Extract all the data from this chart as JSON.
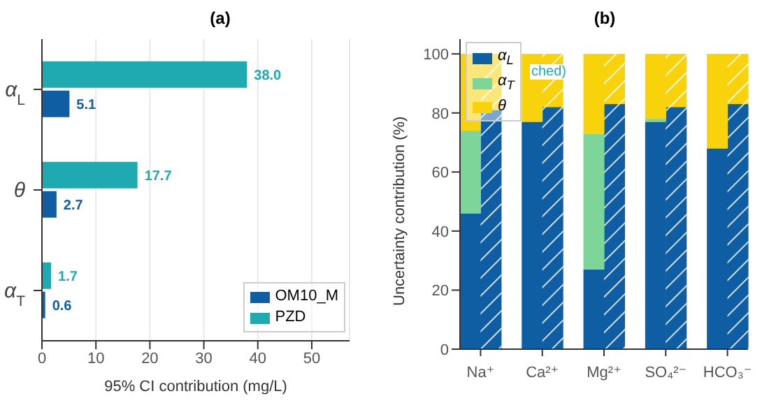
{
  "chart_data": [
    {
      "type": "bar",
      "title": "(a)",
      "orientation": "horizontal",
      "categories": [
        "α$_{L}$",
        "θ",
        "α$_{T}$"
      ],
      "xlabel": "95% CI contribution (mg/L)",
      "xlim": [
        0,
        57
      ],
      "xticks": [
        0,
        10,
        20,
        30,
        40,
        50
      ],
      "grid": "x",
      "legend": "bottom right",
      "data_labels": true,
      "series": [
        {
          "name": "OM10_M",
          "color": "#0f5ea4",
          "values": [
            5.1,
            2.7,
            0.6
          ],
          "value_labels": [
            "5.1",
            "2.7",
            "0.6"
          ]
        },
        {
          "name": "PZD",
          "color": "#1eaab0",
          "values": [
            38.0,
            17.7,
            1.7
          ],
          "value_labels": [
            "38.0",
            "17.7",
            "1.7"
          ]
        }
      ]
    },
    {
      "type": "bar",
      "title": "(b)",
      "stacked": true,
      "categories": [
        "Na⁺",
        null,
        null,
        "Ca²⁺",
        null,
        null,
        "Mg²⁺",
        null,
        null,
        "SO₄²⁻",
        null,
        null,
        "HCO₃⁻",
        null
      ],
      "ylabel": "Uncertainty contribution (%)",
      "ylim": [
        0,
        105
      ],
      "yticks": [
        0,
        20,
        40,
        60,
        80,
        100
      ],
      "grid": false,
      "legend": "top left",
      "annotations": [
        "ched)"
      ],
      "series": [
        {
          "name": "α$_{L}$",
          "color": "#0f5ea4",
          "values": [
            46,
            81,
            null,
            77,
            82,
            null,
            27,
            83,
            null,
            77,
            82,
            null,
            68,
            83
          ]
        },
        {
          "name": "α$_{T}$",
          "color": "#7dd59a",
          "values": [
            28,
            0,
            null,
            0,
            0,
            null,
            46,
            0,
            null,
            1,
            0,
            null,
            0,
            0
          ]
        },
        {
          "name": "θ",
          "color": "#f8d30c",
          "values": [
            26,
            19,
            null,
            23,
            18,
            null,
            27,
            17,
            null,
            22,
            18,
            null,
            32,
            17
          ]
        }
      ]
    }
  ]
}
